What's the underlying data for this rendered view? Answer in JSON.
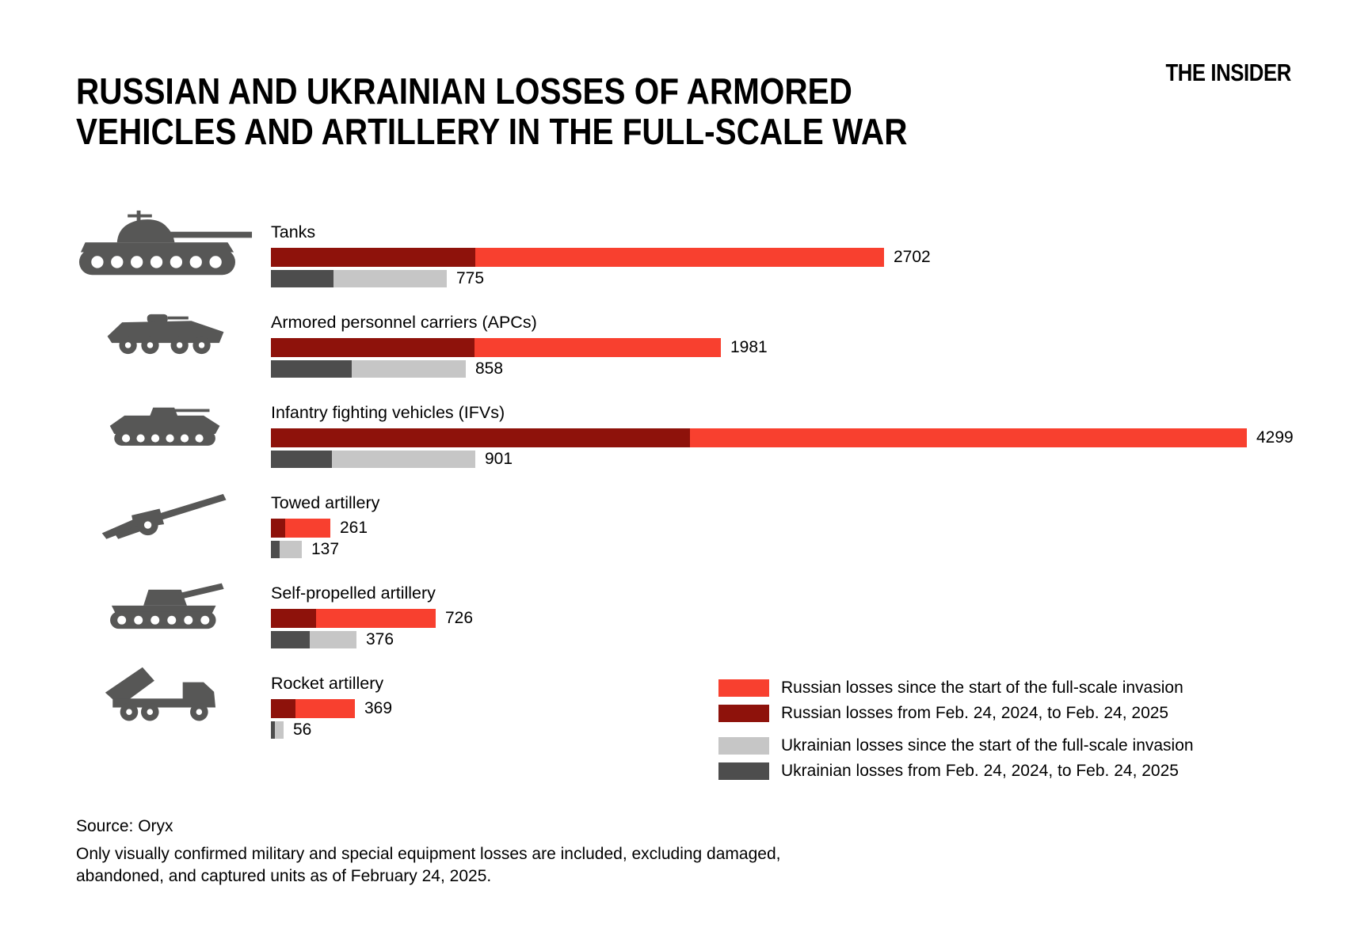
{
  "brand": "THE INSIDER",
  "header": {
    "title_line1": "RUSSIAN AND UKRAINIAN LOSSES OF ARMORED",
    "title_line2": "VEHICLES AND ARTILLERY IN THE FULL-SCALE WAR"
  },
  "colors": {
    "russian_total": "#F8402F",
    "russian_recent": "#8E120B",
    "ukrainian_total": "#C6C6C6",
    "ukrainian_recent": "#4D4D4D",
    "icon": "#575756",
    "text": "#000000",
    "background": "#FFFFFF"
  },
  "chart_data": {
    "type": "bar",
    "orientation": "horizontal",
    "title": "RUSSIAN AND UKRAINIAN LOSSES OF ARMORED VEHICLES AND ARTILLERY IN THE FULL-SCALE WAR",
    "categories": [
      "Tanks",
      "Armored personnel carriers (APCs)",
      "Infantry fighting vehicles (IFVs)",
      "Towed artillery",
      "Self-propelled artillery",
      "Rocket artillery"
    ],
    "icons": [
      "tank-icon",
      "apc-icon",
      "ifv-icon",
      "towed-artillery-icon",
      "self-propelled-artillery-icon",
      "rocket-artillery-icon"
    ],
    "axis_max": 4299,
    "grid": false,
    "legend_position": "bottom-right",
    "value_labels_shown": "totals_only",
    "series": [
      {
        "name": "Russian losses since the start of the full-scale invasion",
        "color": "#F8402F",
        "values": [
          2702,
          1981,
          4299,
          261,
          726,
          369
        ]
      },
      {
        "name": "Russian losses from Feb. 24, 2024, to Feb. 24, 2025",
        "color": "#8E120B",
        "values": [
          900,
          895,
          1845,
          63,
          200,
          108
        ],
        "estimated_from_bar_lengths": true
      },
      {
        "name": "Ukrainian losses since the start of the full-scale invasion",
        "color": "#C6C6C6",
        "values": [
          775,
          858,
          901,
          137,
          376,
          56
        ]
      },
      {
        "name": "Ukrainian losses from Feb. 24, 2024, to Feb. 24, 2025",
        "color": "#4D4D4D",
        "values": [
          275,
          355,
          270,
          40,
          170,
          17
        ],
        "estimated_from_bar_lengths": true
      }
    ]
  },
  "footer": {
    "source": "Source: Oryx",
    "note_line1": "Only visually confirmed military and special equipment losses are included, excluding damaged,",
    "note_line2": "abandoned, and captured units as of February 24, 2025."
  }
}
